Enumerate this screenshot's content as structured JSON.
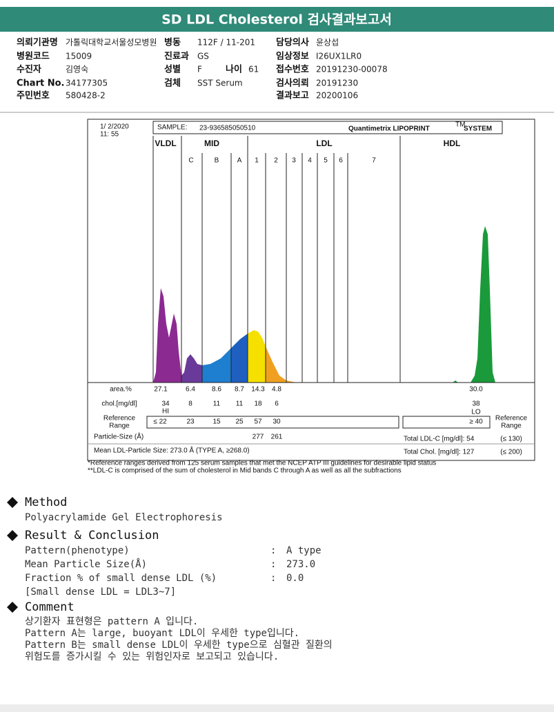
{
  "header": {
    "title": "SD LDL Cholesterol 검사결과보고서"
  },
  "info": {
    "rows": [
      [
        {
          "label": "의뢰기관명",
          "value": "가톨릭대학교서울성모병원"
        },
        {
          "label": "병동",
          "value": "112F / 11-201"
        },
        {
          "label": "담당의사",
          "value": "윤상섭"
        }
      ],
      [
        {
          "label": "병원코드",
          "value": "15009"
        },
        {
          "label": "진료과",
          "value": "GS"
        },
        {
          "label": "임상정보",
          "value": "I26UX1LR0"
        }
      ],
      [
        {
          "label": "수진자",
          "value": "김영숙"
        },
        {
          "label": "성별",
          "value": "F"
        },
        {
          "label": "나이",
          "value": "61"
        },
        {
          "label": "접수번호",
          "value": "20191230-00078"
        }
      ],
      [
        {
          "label": "Chart No.",
          "value": "34177305"
        },
        {
          "label": "검체",
          "value": "SST Serum"
        },
        {
          "label": "검사의뢰",
          "value": "20191230"
        }
      ],
      [
        {
          "label": "주민번호",
          "value": "580428-2"
        },
        {
          "label": "결과보고",
          "value": "20200106"
        }
      ]
    ]
  },
  "figure": {
    "date": "1/ 2/2020",
    "time": "11: 55",
    "sample_label": "SAMPLE:",
    "sample_id": "23-936585050510",
    "brand": "Quantimetrix LIPOPRINT",
    "brand_tm": "TM",
    "brand_suffix": "SYSTEM",
    "bands": [
      "VLDL",
      "MID",
      "LDL",
      "HDL"
    ],
    "subbands": [
      "C",
      "B",
      "A",
      "1",
      "2",
      "3",
      "4",
      "5",
      "6",
      "7"
    ],
    "area_label": "area.%",
    "area": [
      "27.1",
      "6.4",
      "8.6",
      "8.7",
      "14.3",
      "4.8",
      "30.0"
    ],
    "chol_label": "chol.[mg/dl]",
    "chol": [
      "34",
      "8",
      "11",
      "11",
      "18",
      "6",
      "38"
    ],
    "flags": [
      "HI",
      "LO"
    ],
    "reference_label": [
      "Reference",
      "Range"
    ],
    "reference": [
      "≤ 22",
      "23",
      "15",
      "25",
      "57",
      "30",
      "≥ 40"
    ],
    "particle_size_label": "Particle-Size (Å)",
    "particle_size": [
      "277",
      "261"
    ],
    "mean_ldl": "Mean LDL-Particle Size:  273.0 Å  (TYPE A, ≥268.0)",
    "total_ldl": "Total LDL-C [mg/dl]:  54",
    "total_ldl_range": "(≤ 130)",
    "total_chol": "Total Chol. [mg/dl]:   127",
    "total_chol_range": "(≤ 200)",
    "footnotes": [
      "*Reference ranges derived from 125 serum samples that met the NCEP ATP III guidelines for desirable lipid status",
      "**LDL-C is comprised of the sum of cholesterol in Mid bands C through A as well as all the subfractions"
    ]
  },
  "method": {
    "title": "Method",
    "text": "Polyacrylamide Gel Electrophoresis"
  },
  "result": {
    "title": "Result & Conclusion",
    "rows": [
      [
        "Pattern(phenotype)",
        ":",
        "A type"
      ],
      [
        "Mean Particle Size(Å)",
        ":",
        "273.0"
      ],
      [
        "Fraction % of small dense LDL (%)",
        ":",
        "0.0"
      ]
    ],
    "note": "[Small dense LDL = LDL3~7]"
  },
  "comment": {
    "title": "Comment",
    "lines": [
      "상기환자 표현형은 pattern A 입니다.",
      "Pattern A는 large, buoyant LDL이 우세한 type입니다.",
      "Pattern B는 small dense LDL이 우세한 type으로 심혈관 질환의",
      "위험도를 증가시킬 수 있는 위험인자로 보고되고 있습니다."
    ]
  }
}
